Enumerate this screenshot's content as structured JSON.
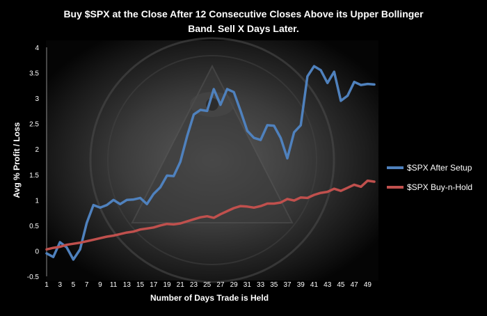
{
  "chart_data": {
    "type": "line",
    "title_lines": [
      "Buy $SPX at the Close After 12 Consecutive Closes Above its Upper Bollinger",
      "Band. Sell X Days Later."
    ],
    "xlabel": "Number of Days Trade is Held",
    "ylabel": "Avg % Profit / Loss",
    "x": [
      1,
      2,
      3,
      4,
      5,
      6,
      7,
      8,
      9,
      10,
      11,
      12,
      13,
      14,
      15,
      16,
      17,
      18,
      19,
      20,
      21,
      22,
      23,
      24,
      25,
      26,
      27,
      28,
      29,
      30,
      31,
      32,
      33,
      34,
      35,
      36,
      37,
      38,
      39,
      40,
      41,
      42,
      43,
      44,
      45,
      46,
      47,
      48,
      49,
      50
    ],
    "x_tick_labels": [
      "1",
      "3",
      "5",
      "7",
      "9",
      "11",
      "13",
      "15",
      "17",
      "19",
      "21",
      "23",
      "25",
      "27",
      "29",
      "31",
      "33",
      "35",
      "37",
      "39",
      "41",
      "43",
      "45",
      "47",
      "49"
    ],
    "ylim": [
      -0.5,
      4
    ],
    "y_ticks": [
      "4",
      "3.5",
      "3",
      "2.5",
      "2",
      "1.5",
      "1",
      "0.5",
      "0",
      "-0.5"
    ],
    "y_tick_values": [
      4,
      3.5,
      3,
      2.5,
      2,
      1.5,
      1,
      0.5,
      0,
      -0.5
    ],
    "grid": false,
    "legend_position": "right",
    "series": [
      {
        "name": "$SPX After Setup",
        "color": "#4f81bd",
        "values": [
          -0.05,
          -0.12,
          0.17,
          0.07,
          -0.17,
          0.03,
          0.55,
          0.9,
          0.85,
          0.9,
          1.0,
          0.92,
          1.0,
          1.01,
          1.04,
          0.92,
          1.12,
          1.25,
          1.48,
          1.47,
          1.75,
          2.25,
          2.68,
          2.77,
          2.75,
          3.18,
          2.87,
          3.18,
          3.12,
          2.75,
          2.36,
          2.22,
          2.18,
          2.47,
          2.46,
          2.22,
          1.82,
          2.33,
          2.47,
          3.43,
          3.63,
          3.55,
          3.3,
          3.52,
          2.95,
          3.05,
          3.32,
          3.26,
          3.28,
          3.27
        ]
      },
      {
        "name": "$SPX Buy-n-Hold",
        "color": "#c0504d",
        "values": [
          0.03,
          0.06,
          0.08,
          0.12,
          0.14,
          0.16,
          0.19,
          0.22,
          0.25,
          0.28,
          0.3,
          0.33,
          0.36,
          0.38,
          0.42,
          0.44,
          0.46,
          0.5,
          0.53,
          0.52,
          0.54,
          0.58,
          0.62,
          0.66,
          0.68,
          0.65,
          0.72,
          0.78,
          0.84,
          0.88,
          0.87,
          0.85,
          0.88,
          0.93,
          0.93,
          0.95,
          1.02,
          0.99,
          1.05,
          1.04,
          1.1,
          1.14,
          1.16,
          1.22,
          1.18,
          1.24,
          1.3,
          1.26,
          1.38,
          1.36
        ]
      }
    ]
  }
}
